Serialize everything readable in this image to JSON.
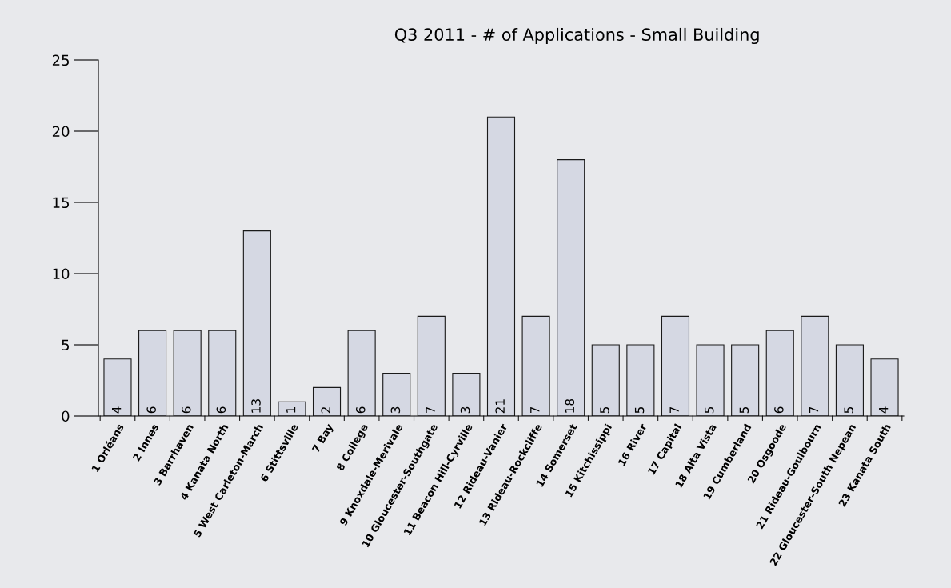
{
  "chart_data": {
    "type": "bar",
    "title": "Q3 2011 - # of Applications - Small Building",
    "categories": [
      "1 Orléans",
      "2 Innes",
      "3 Barrhaven",
      "4 Kanata North",
      "5 West Carleton-March",
      "6 Stittsville",
      "7 Bay",
      "8 College",
      "9 Knoxdale-Merivale",
      "10 Gloucester-Southgate",
      "11 Beacon Hill-Cyrville",
      "12 Rideau-Vanier",
      "13 Rideau-Rockcliffe",
      "14 Somerset",
      "15 Kitchissippi",
      "16 River",
      "17 Capital",
      "18 Alta Vista",
      "19 Cumberland",
      "20 Osgoode",
      "21 Rideau-Goulbourn",
      "22 Gloucester-South Nepean",
      "23 Kanata South"
    ],
    "values": [
      4,
      6,
      6,
      6,
      13,
      1,
      2,
      6,
      3,
      7,
      3,
      21,
      7,
      18,
      5,
      5,
      7,
      5,
      5,
      6,
      7,
      5,
      4
    ],
    "color": "#d5d8e3",
    "ylim": [
      0,
      25
    ],
    "yticks": [
      0,
      5,
      10,
      15,
      20,
      25
    ],
    "grid": false,
    "data_labels": true
  }
}
